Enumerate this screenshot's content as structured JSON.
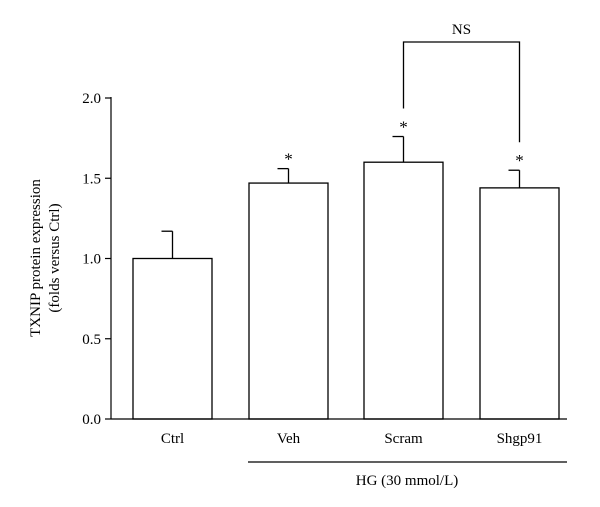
{
  "chart_data": {
    "type": "bar",
    "categories": [
      "Ctrl",
      "Veh",
      "Scram",
      "Shgp91"
    ],
    "series": [
      {
        "values": [
          1.0,
          1.47,
          1.6,
          1.44
        ],
        "errors": [
          0.17,
          0.09,
          0.16,
          0.11
        ]
      }
    ],
    "significance": [
      "",
      "*",
      "*",
      "*"
    ],
    "comparison": {
      "from": "Scram",
      "to": "Shgp91",
      "label": "NS"
    },
    "group": {
      "label": "HG (30 mmol/L)",
      "categories": [
        "Veh",
        "Scram",
        "Shgp91"
      ]
    },
    "ylabel_line1": "TXNIP protein expression",
    "ylabel_line2": "(folds versus Ctrl)",
    "xlabel": "",
    "ylim": [
      0,
      2.0
    ],
    "yticks": [
      "0.0",
      "0.5",
      "1.0",
      "1.5",
      "2.0"
    ],
    "grid": false,
    "colors": {
      "bar_fill": "#ffffff",
      "bar_stroke": "#000000"
    }
  }
}
